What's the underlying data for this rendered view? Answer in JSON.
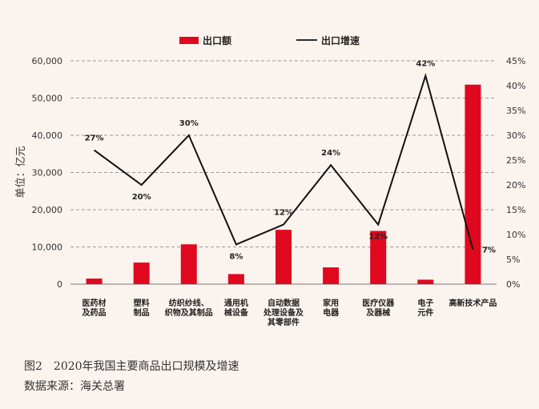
{
  "chart_data": {
    "type": "bar",
    "categories": [
      [
        "医药材",
        "及药品"
      ],
      [
        "塑料",
        "制品"
      ],
      [
        "纺织纱线、",
        "织物及其制品"
      ],
      [
        "通用机",
        "械设备"
      ],
      [
        "自动数据",
        "处理设备及",
        "其零部件"
      ],
      [
        "家用",
        "电器"
      ],
      [
        "医疗仪器",
        "及器械"
      ],
      [
        "电子",
        "元件"
      ],
      [
        "高新技术产品"
      ]
    ],
    "series": [
      {
        "name": "出口额",
        "type": "bar",
        "axis": "left",
        "color": "#e0081e",
        "values": [
          1500,
          5800,
          10700,
          2700,
          14600,
          4500,
          14300,
          1200,
          53600
        ]
      },
      {
        "name": "出口增速",
        "type": "line",
        "axis": "right",
        "color": "#111111",
        "values": [
          27,
          20,
          30,
          8,
          12,
          24,
          12,
          42,
          7
        ],
        "labels": [
          "27%",
          "20%",
          "30%",
          "8%",
          "12%",
          "24%",
          "12%",
          "42%",
          "7%"
        ]
      }
    ],
    "ylabel": "单位：亿元",
    "y_left": {
      "min": 0,
      "max": 60000,
      "ticks": [
        0,
        10000,
        20000,
        30000,
        40000,
        50000,
        60000
      ],
      "tick_labels": [
        "0",
        "10,000",
        "20,000",
        "30,000",
        "40,000",
        "50,000",
        "60,000"
      ]
    },
    "y_right": {
      "min": 0,
      "max": 45,
      "ticks": [
        0,
        5,
        10,
        15,
        20,
        25,
        30,
        35,
        40,
        45
      ],
      "tick_labels": [
        "0%",
        "5%",
        "10%",
        "15%",
        "20%",
        "25%",
        "30%",
        "35%",
        "40%",
        "45%"
      ]
    },
    "grid": true,
    "legend": "top-center"
  },
  "caption": {
    "title": "图2　2020年我国主要商品出口规模及增速",
    "source": "数据来源：海关总署"
  }
}
